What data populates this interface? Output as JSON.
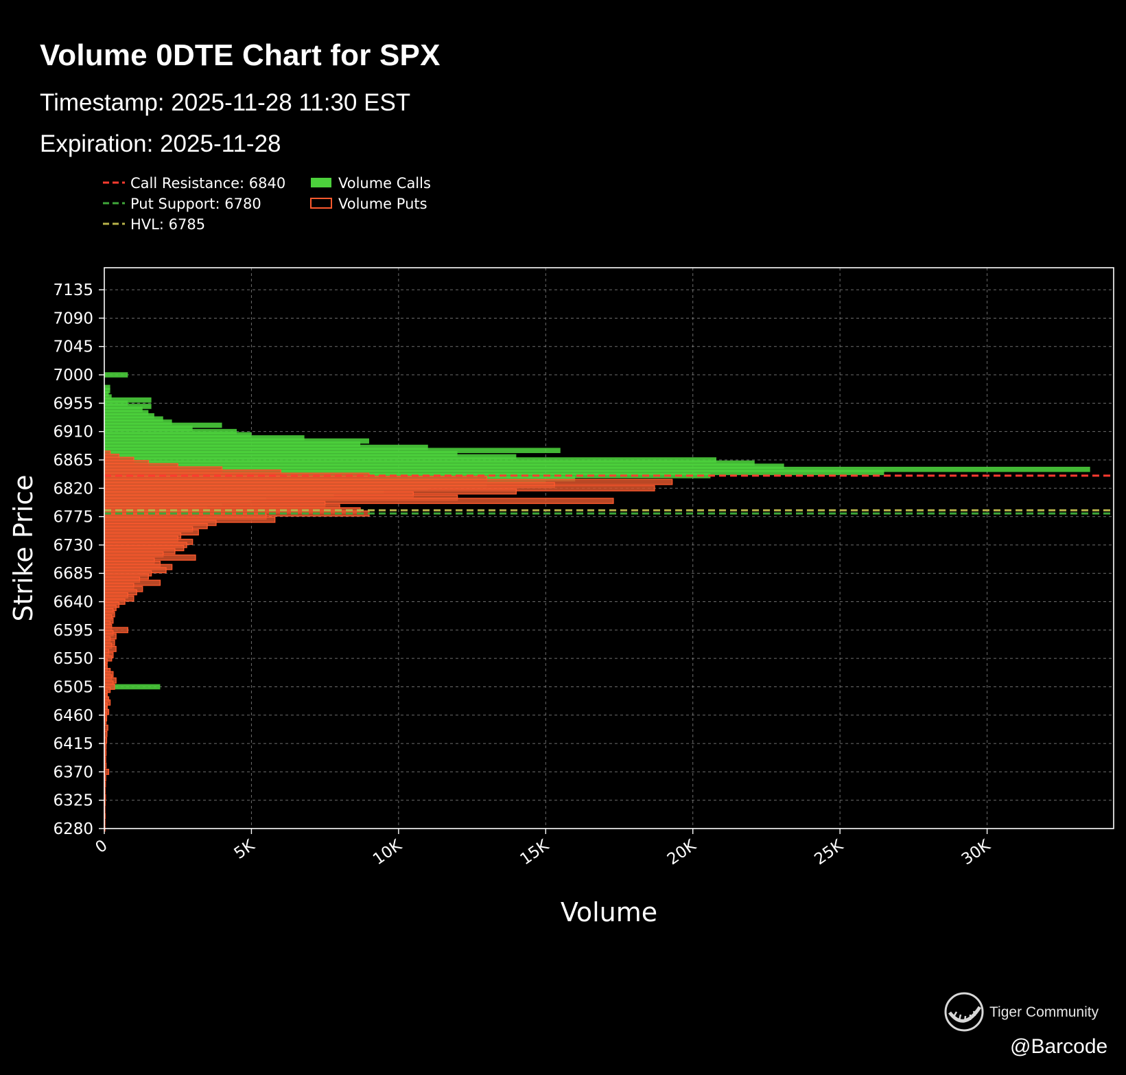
{
  "header": {
    "title": "Volume 0DTE Chart for SPX",
    "timestamp": "Timestamp: 2025-11-28 11:30 EST",
    "expiration": "Expiration: 2025-11-28"
  },
  "watermark": {
    "brand": "Tiger Community",
    "credit": "@Barcode"
  },
  "colors": {
    "calls": "#4cd13c",
    "puts_fill": "#d9532c",
    "puts_edge": "#ff5a2e",
    "call_resistance": "#ff3b2f",
    "put_support": "#3fa83a",
    "hvl": "#b8b24a",
    "grid": "#8a8a8a"
  },
  "chart_data": {
    "type": "bar",
    "orientation": "horizontal",
    "xlabel": "Volume",
    "ylabel": "Strike Price",
    "xlim": [
      0,
      34300
    ],
    "ylim": [
      6280,
      7170
    ],
    "xticks": [
      0,
      5000,
      10000,
      15000,
      20000,
      25000,
      30000
    ],
    "xtick_labels": [
      "0",
      "5K",
      "10K",
      "15K",
      "20K",
      "25K",
      "30K"
    ],
    "yticks": [
      7135,
      7090,
      7045,
      7000,
      6955,
      6910,
      6865,
      6820,
      6775,
      6730,
      6685,
      6640,
      6595,
      6550,
      6505,
      6460,
      6415,
      6370,
      6325,
      6280
    ],
    "grid": true,
    "legend_position": "upper-left-outside",
    "legend": [
      {
        "label": "Call Resistance: 6840",
        "kind": "dashed-line",
        "color_key": "call_resistance"
      },
      {
        "label": "Put Support: 6780",
        "kind": "dashed-line",
        "color_key": "put_support"
      },
      {
        "label": "HVL: 6785",
        "kind": "dashed-line",
        "color_key": "hvl"
      },
      {
        "label": "Volume Calls",
        "kind": "filled-box",
        "color_key": "calls"
      },
      {
        "label": "Volume Puts",
        "kind": "outline-box",
        "color_key": "puts_edge"
      }
    ],
    "levels": {
      "call_resistance": 6840,
      "put_support": 6780,
      "hvl": 6785
    },
    "series": [
      {
        "name": "Volume Calls",
        "strikes": [
          7000,
          6980,
          6975,
          6970,
          6965,
          6960,
          6955,
          6950,
          6945,
          6940,
          6935,
          6930,
          6925,
          6920,
          6915,
          6910,
          6905,
          6900,
          6895,
          6890,
          6885,
          6880,
          6875,
          6870,
          6865,
          6860,
          6855,
          6850,
          6845,
          6840,
          6835,
          6830,
          6825,
          6820,
          6815,
          6810,
          6805,
          6800,
          6795,
          6790,
          6785,
          6780,
          6775,
          6505
        ],
        "values": [
          800,
          200,
          200,
          150,
          250,
          1600,
          800,
          1600,
          1300,
          1500,
          1700,
          2000,
          2300,
          4000,
          3000,
          4500,
          5000,
          6800,
          9000,
          8700,
          11000,
          15500,
          12000,
          14000,
          20800,
          22100,
          23100,
          33500,
          26500,
          20600,
          16000,
          15000,
          13000,
          11000,
          9500,
          7800,
          5500,
          5000,
          4000,
          3500,
          3000,
          2500,
          1500,
          1900
        ]
      },
      {
        "name": "Volume Puts",
        "strikes": [
          6875,
          6870,
          6865,
          6860,
          6855,
          6850,
          6845,
          6840,
          6835,
          6830,
          6825,
          6820,
          6815,
          6810,
          6805,
          6800,
          6795,
          6790,
          6785,
          6780,
          6775,
          6770,
          6765,
          6760,
          6755,
          6750,
          6745,
          6740,
          6735,
          6730,
          6725,
          6720,
          6715,
          6710,
          6705,
          6700,
          6695,
          6690,
          6685,
          6680,
          6675,
          6670,
          6665,
          6660,
          6655,
          6650,
          6645,
          6640,
          6635,
          6630,
          6625,
          6620,
          6615,
          6610,
          6605,
          6600,
          6595,
          6590,
          6585,
          6580,
          6575,
          6570,
          6565,
          6560,
          6555,
          6550,
          6545,
          6540,
          6535,
          6530,
          6525,
          6520,
          6515,
          6510,
          6505,
          6500,
          6495,
          6490,
          6485,
          6480,
          6475,
          6470,
          6465,
          6460,
          6455,
          6450,
          6440,
          6430,
          6420,
          6410,
          6400,
          6390,
          6380,
          6370,
          6360,
          6350,
          6340,
          6330,
          6320,
          6310,
          6300,
          6290,
          6280
        ],
        "values": [
          200,
          500,
          1000,
          1500,
          2500,
          4000,
          6000,
          9000,
          13000,
          19300,
          15300,
          18700,
          14000,
          10500,
          12000,
          17300,
          7500,
          8000,
          8700,
          9000,
          5500,
          5800,
          3800,
          3500,
          3000,
          3200,
          2600,
          2500,
          3000,
          2800,
          2700,
          2400,
          2000,
          3100,
          1700,
          1900,
          2300,
          2100,
          1600,
          1500,
          1200,
          1900,
          1000,
          1300,
          1100,
          800,
          1000,
          700,
          500,
          400,
          300,
          350,
          250,
          300,
          200,
          250,
          800,
          300,
          400,
          200,
          350,
          250,
          400,
          150,
          300,
          250,
          100,
          50,
          100,
          200,
          300,
          250,
          400,
          300,
          350,
          200,
          100,
          100,
          150,
          200,
          100,
          100,
          150,
          80,
          80,
          60,
          120,
          90,
          80,
          60,
          60,
          50,
          60,
          150,
          50,
          40,
          30,
          40,
          30,
          20,
          30,
          20,
          20
        ]
      }
    ]
  }
}
